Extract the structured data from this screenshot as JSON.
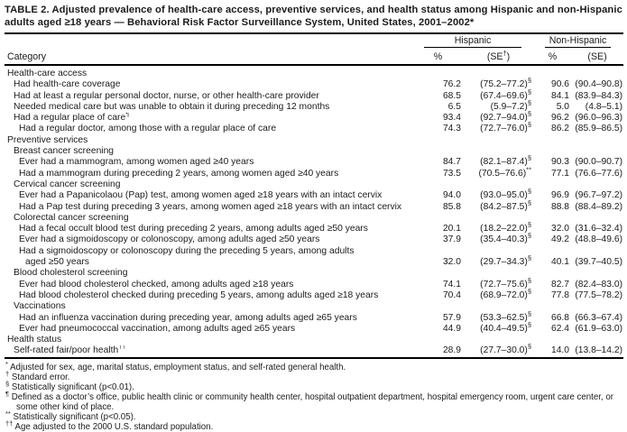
{
  "title": "TABLE 2. Adjusted prevalence of health-care access, preventive services, and health status among Hispanic and non-Hispanic adults aged ≥18 years — Behavioral Risk Factor Surveillance System, United States, 2001–2002*",
  "header": {
    "category": "Category",
    "group_hispanic": "Hispanic",
    "group_nonhispanic": "Non-Hispanic",
    "pct": "%",
    "se_pre": "(SE",
    "se_sup": "†",
    "se_post": ")",
    "se_plain": "(SE)"
  },
  "rows": [
    {
      "level": 0,
      "label": "Health-care access"
    },
    {
      "level": 1,
      "label": "Had health-care coverage",
      "h_pct": "76.2",
      "h_se": "(75.2–77.2)",
      "h_sup": "§",
      "n_pct": "90.6",
      "n_se": "(90.4–90.8)"
    },
    {
      "level": 1,
      "label": "Had at least a regular personal doctor, nurse, or other health-care provider",
      "h_pct": "68.5",
      "h_se": "(67.4–69.6)",
      "h_sup": "§",
      "n_pct": "84.1",
      "n_se": "(83.9–84.3)"
    },
    {
      "level": 1,
      "label": "Needed medical care but was unable to obtain it during preceding 12 months",
      "h_pct": "6.5",
      "h_se": "(5.9–7.2)",
      "h_sup": "§",
      "n_pct": "5.0",
      "n_se": "(4.8–5.1)"
    },
    {
      "level": 1,
      "label": "Had a regular place of care",
      "label_sup": "¶",
      "h_pct": "93.4",
      "h_se": "(92.7–94.0)",
      "h_sup": "§",
      "n_pct": "96.2",
      "n_se": "(96.0–96.3)"
    },
    {
      "level": 2,
      "label": "Had a regular doctor, among those with a regular place of care",
      "h_pct": "74.3",
      "h_se": "(72.7–76.0)",
      "h_sup": "§",
      "n_pct": "86.2",
      "n_se": "(85.9–86.5)"
    },
    {
      "level": 0,
      "label": "Preventive services"
    },
    {
      "level": 1,
      "label": "Breast cancer screening"
    },
    {
      "level": 2,
      "label": "Ever had a mammogram, among women aged ≥40 years",
      "h_pct": "84.7",
      "h_se": "(82.1–87.4)",
      "h_sup": "§",
      "n_pct": "90.3",
      "n_se": "(90.0–90.7)"
    },
    {
      "level": 2,
      "label": "Had a mammogram during preceding 2 years, among women aged ≥40 years",
      "h_pct": "73.5",
      "h_se": "(70.5–76.6)",
      "h_sup": "**",
      "n_pct": "77.1",
      "n_se": "(76.6–77.6)"
    },
    {
      "level": 1,
      "label": "Cervical cancer screening"
    },
    {
      "level": 2,
      "label": "Ever had a Papanicolaou (Pap) test, among women aged ≥18 years with an intact cervix",
      "h_pct": "94.0",
      "h_se": "(93.0–95.0)",
      "h_sup": "§",
      "n_pct": "96.9",
      "n_se": "(96.7–97.2)"
    },
    {
      "level": 2,
      "label": "Had a Pap test during preceding 3 years, among women aged ≥18 years with an intact cervix",
      "h_pct": "85.8",
      "h_se": "(84.2–87.5)",
      "h_sup": "§",
      "n_pct": "88.8",
      "n_se": "(88.4–89.2)"
    },
    {
      "level": 1,
      "label": "Colorectal cancer screening"
    },
    {
      "level": 2,
      "label": "Had a fecal occult blood test during preceding 2 years, among adults aged ≥50 years",
      "h_pct": "20.1",
      "h_se": "(18.2–22.0)",
      "h_sup": "§",
      "n_pct": "32.0",
      "n_se": "(31.6–32.4)"
    },
    {
      "level": 2,
      "label": "Ever had a sigmoidoscopy or colonoscopy, among adults aged ≥50 years",
      "h_pct": "37.9",
      "h_se": "(35.4–40.3)",
      "h_sup": "§",
      "n_pct": "49.2",
      "n_se": "(48.8–49.6)"
    },
    {
      "level": 2,
      "label": "Had a sigmoidoscopy or colonoscopy during the preceding 5 years, among adults"
    },
    {
      "level": 3,
      "label": "aged ≥50 years",
      "h_pct": "32.0",
      "h_se": "(29.7–34.3)",
      "h_sup": "§",
      "n_pct": "40.1",
      "n_se": "(39.7–40.5)"
    },
    {
      "level": 1,
      "label": "Blood cholesterol screening"
    },
    {
      "level": 2,
      "label": "Ever had blood cholesterol checked, among adults aged ≥18 years",
      "h_pct": "74.1",
      "h_se": "(72.7–75.6)",
      "h_sup": "§",
      "n_pct": "82.7",
      "n_se": "(82.4–83.0)"
    },
    {
      "level": 2,
      "label": "Had blood cholesterol checked during preceding 5 years, among adults aged ≥18 years",
      "h_pct": "70.4",
      "h_se": "(68.9–72.0)",
      "h_sup": "§",
      "n_pct": "77.8",
      "n_se": "(77.5–78.2)"
    },
    {
      "level": 1,
      "label": "Vaccinations"
    },
    {
      "level": 2,
      "label": "Had an influenza vaccination during preceding year, among adults aged ≥65 years",
      "h_pct": "57.9",
      "h_se": "(53.3–62.5)",
      "h_sup": "§",
      "n_pct": "66.8",
      "n_se": "(66.3–67.4)"
    },
    {
      "level": 2,
      "label": "Ever had pneumococcal vaccination, among adults aged ≥65 years",
      "h_pct": "44.9",
      "h_se": "(40.4–49.5)",
      "h_sup": "§",
      "n_pct": "62.4",
      "n_se": "(61.9–63.0)"
    },
    {
      "level": 0,
      "label": "Health status"
    },
    {
      "level": 1,
      "label": "Self-rated fair/poor health",
      "label_sup": "††",
      "h_pct": "28.9",
      "h_se": "(27.7–30.0)",
      "h_sup": "§",
      "n_pct": "14.0",
      "n_se": "(13.8–14.2)"
    }
  ],
  "footnotes": [
    {
      "marker": "*",
      "text": "Adjusted for sex, age, marital status, employment status, and self-rated general health."
    },
    {
      "marker": "†",
      "text": "Standard error."
    },
    {
      "marker": "§",
      "text": "Statistically significant (p<0.01)."
    },
    {
      "marker": "¶",
      "text": "Defined as a doctor’s office, public health clinic or community health center, hospital outpatient department, hospital emergency room, urgent care center, or some other kind of place."
    },
    {
      "marker": "**",
      "text": "Statistically significant (p<0.05)."
    },
    {
      "marker": "††",
      "text": "Age adjusted to the 2000 U.S. standard population."
    }
  ]
}
